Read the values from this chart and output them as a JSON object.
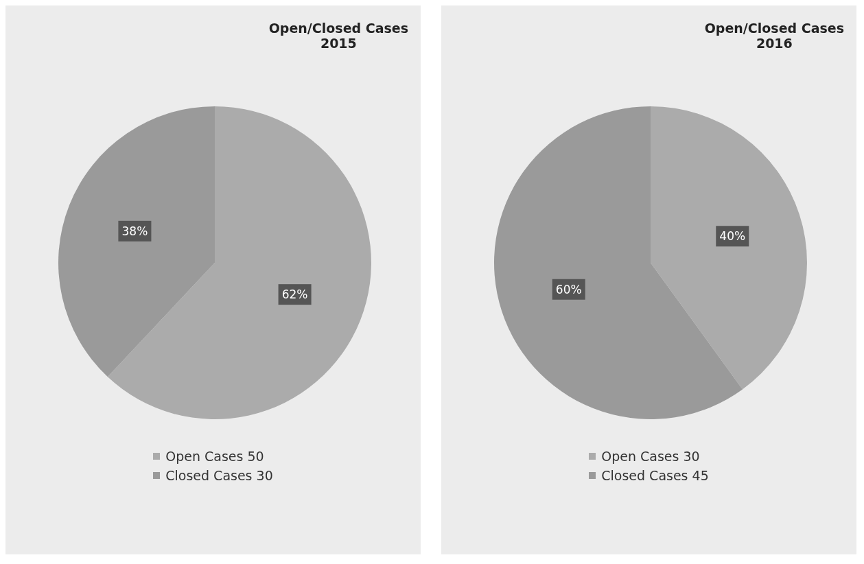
{
  "chart_data": [
    {
      "type": "pie",
      "title": "Open/Closed Cases\n2015",
      "categories": [
        "Open Cases 50",
        "Closed Cases 30"
      ],
      "values": [
        62,
        38
      ],
      "colors": [
        "#ababab",
        "#9a9a9a"
      ],
      "value_labels": [
        "62%",
        "38%"
      ],
      "legend": "bottom"
    },
    {
      "type": "pie",
      "title": "Open/Closed Cases\n2016",
      "categories": [
        "Open Cases 30",
        "Closed Cases 45"
      ],
      "values": [
        40,
        60
      ],
      "colors": [
        "#ababab",
        "#9a9a9a"
      ],
      "value_labels": [
        "40%",
        "60%"
      ],
      "legend": "bottom"
    }
  ]
}
